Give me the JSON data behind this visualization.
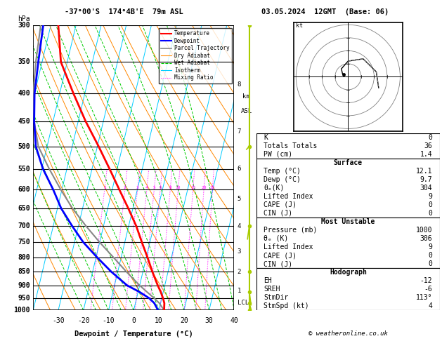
{
  "title_left": "-37°00'S  174°4B'E  79m ASL",
  "title_right": "03.05.2024  12GMT  (Base: 06)",
  "xlabel": "Dewpoint / Temperature (°C)",
  "ylabel_left": "hPa",
  "pressure_levels": [
    300,
    350,
    400,
    450,
    500,
    550,
    600,
    650,
    700,
    750,
    800,
    850,
    900,
    950,
    1000
  ],
  "temp_xlim": [
    -40,
    40
  ],
  "temp_xticks": [
    -30,
    -20,
    -10,
    0,
    10,
    20,
    30,
    40
  ],
  "km_asl_labels": [
    "8",
    "7",
    "6",
    "5",
    "4",
    "3",
    "2",
    "1",
    "LCL"
  ],
  "km_asl_pressures": [
    385,
    470,
    550,
    625,
    700,
    780,
    850,
    920,
    970
  ],
  "legend_items": [
    {
      "label": "Temperature",
      "color": "#ff0000",
      "lw": 1.5,
      "ls": "solid"
    },
    {
      "label": "Dewpoint",
      "color": "#0000ff",
      "lw": 1.5,
      "ls": "solid"
    },
    {
      "label": "Parcel Trajectory",
      "color": "#888888",
      "lw": 1.2,
      "ls": "solid"
    },
    {
      "label": "Dry Adiabat",
      "color": "#ff8800",
      "lw": 0.8,
      "ls": "solid"
    },
    {
      "label": "Wet Adiabat",
      "color": "#00cc00",
      "lw": 0.8,
      "ls": "dashed"
    },
    {
      "label": "Isotherm",
      "color": "#00ccff",
      "lw": 0.8,
      "ls": "solid"
    },
    {
      "label": "Mixing Ratio",
      "color": "#ff00ff",
      "lw": 0.8,
      "ls": "dotted"
    }
  ],
  "mixing_ratio_lines": [
    1,
    2,
    3,
    4,
    5,
    6,
    8,
    10,
    15,
    20,
    25
  ],
  "mixing_ratio_labels_on_chart": [
    "1",
    "2",
    "3",
    "4",
    "5",
    "6",
    "8",
    "10",
    "15",
    "20",
    "25"
  ],
  "temp_profile": {
    "pressure": [
      1000,
      970,
      950,
      925,
      900,
      850,
      800,
      750,
      700,
      650,
      600,
      550,
      500,
      450,
      400,
      350,
      300
    ],
    "temp": [
      12.1,
      11.5,
      10.5,
      9.0,
      7.2,
      3.8,
      0.5,
      -3.2,
      -7.0,
      -11.8,
      -17.2,
      -23.0,
      -29.5,
      -37.0,
      -44.5,
      -52.5,
      -57.0
    ]
  },
  "dewp_profile": {
    "pressure": [
      1000,
      970,
      950,
      925,
      900,
      850,
      800,
      750,
      700,
      650,
      600,
      550,
      500,
      450,
      400,
      350,
      300
    ],
    "temp": [
      9.7,
      7.5,
      5.0,
      0.5,
      -5.0,
      -12.5,
      -19.5,
      -26.5,
      -32.5,
      -38.5,
      -43.5,
      -49.5,
      -54.5,
      -57.5,
      -60.0,
      -61.5,
      -63.0
    ]
  },
  "parcel_profile": {
    "pressure": [
      1000,
      970,
      950,
      925,
      900,
      850,
      800,
      750,
      700,
      650,
      600,
      550,
      500,
      450,
      400,
      350,
      300
    ],
    "temp": [
      12.1,
      9.5,
      7.0,
      3.5,
      0.0,
      -6.5,
      -13.0,
      -20.0,
      -27.0,
      -34.0,
      -40.5,
      -47.0,
      -53.5,
      -57.5,
      -60.5,
      -62.5,
      -64.0
    ]
  },
  "wind_profile_p": [
    1000,
    970,
    925,
    850,
    700,
    500,
    300
  ],
  "wind_profile_dir": [
    113,
    120,
    140,
    180,
    220,
    260,
    290
  ],
  "wind_profile_spd": [
    4,
    5,
    8,
    12,
    18,
    22,
    25
  ],
  "info_K": "0",
  "info_TT": "36",
  "info_PW": "1.4",
  "info_sfc_temp": "12.1",
  "info_sfc_dewp": "9.7",
  "info_sfc_thetae": "304",
  "info_sfc_li": "9",
  "info_sfc_cape": "0",
  "info_sfc_cin": "0",
  "info_mu_pres": "1000",
  "info_mu_thetae": "306",
  "info_mu_li": "9",
  "info_mu_cape": "0",
  "info_mu_cin": "0",
  "info_hodo_eh": "-12",
  "info_hodo_sreh": "-6",
  "info_hodo_stmdir": "113°",
  "info_hodo_stmspd": "4",
  "skew": 27.0
}
